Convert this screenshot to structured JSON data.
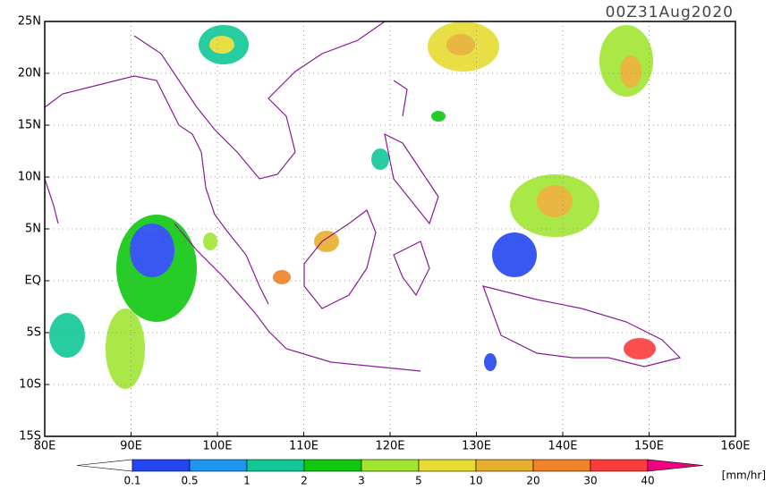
{
  "map": {
    "title": "00Z31Aug2020",
    "xlim": [
      80,
      160
    ],
    "ylim": [
      -15,
      25
    ],
    "xticks": [
      {
        "value": 80,
        "label": "80E"
      },
      {
        "value": 90,
        "label": "90E"
      },
      {
        "value": 100,
        "label": "100E"
      },
      {
        "value": 110,
        "label": "110E"
      },
      {
        "value": 120,
        "label": "120E"
      },
      {
        "value": 130,
        "label": "130E"
      },
      {
        "value": 140,
        "label": "140E"
      },
      {
        "value": 150,
        "label": "150E"
      },
      {
        "value": 160,
        "label": "160E"
      }
    ],
    "yticks": [
      {
        "value": 25,
        "label": "25N"
      },
      {
        "value": 20,
        "label": "20N"
      },
      {
        "value": 15,
        "label": "15N"
      },
      {
        "value": 10,
        "label": "10N"
      },
      {
        "value": 5,
        "label": "5N"
      },
      {
        "value": 0,
        "label": "EQ"
      },
      {
        "value": -5,
        "label": "5S"
      },
      {
        "value": -10,
        "label": "10S"
      },
      {
        "value": -15,
        "label": "15S"
      }
    ],
    "colorbar": {
      "levels": [
        0.1,
        0.5,
        1,
        2,
        3,
        5,
        10,
        20,
        30,
        40
      ],
      "colors": [
        "#2346f0",
        "#1e96f0",
        "#10c896",
        "#10c810",
        "#a0e632",
        "#e6dc32",
        "#e6af2d",
        "#f08228",
        "#fa3c3c"
      ],
      "low_color": "#ffffff",
      "high_color": "#f00082",
      "units": "[mm/hr]"
    }
  }
}
